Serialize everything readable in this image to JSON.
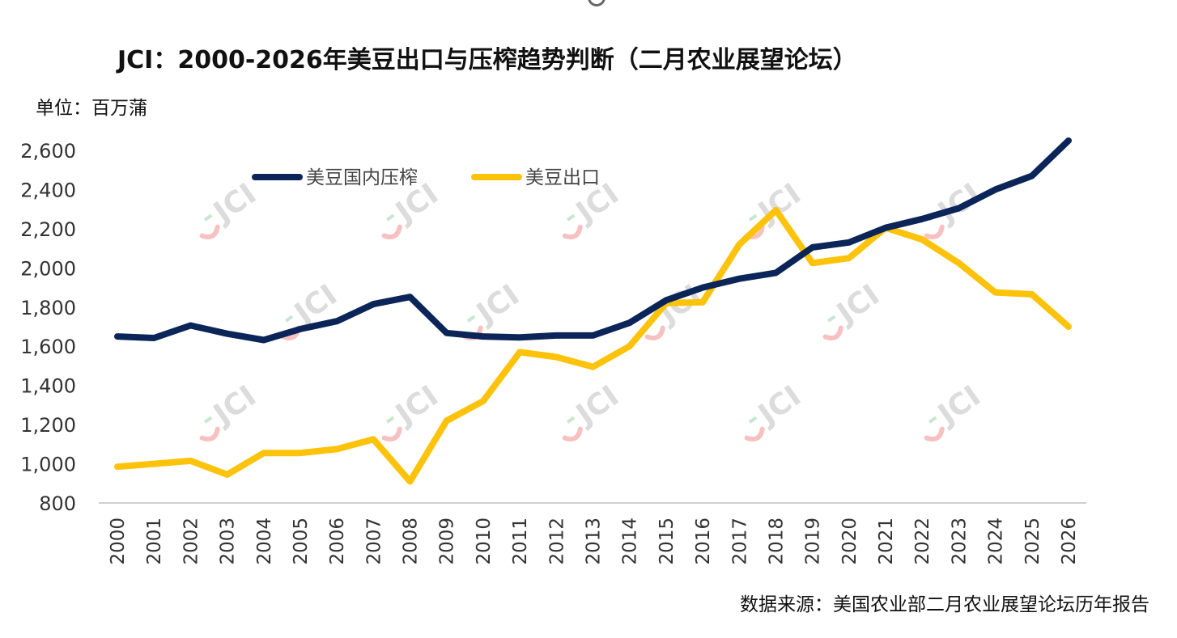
{
  "chart_data": {
    "type": "line",
    "title": "JCI：2000-2026年美豆出口与压榨趋势判断（二月农业展望论坛）",
    "unit_label": "单位：百万蒲",
    "source": "数据来源：美国农业部二月农业展望论坛历年报告",
    "watermark": "JCI",
    "ylim": [
      800,
      2700
    ],
    "yticks": [
      800,
      1000,
      1200,
      1400,
      1600,
      1800,
      2000,
      2200,
      2400,
      2600
    ],
    "ytick_labels": [
      "800",
      "1,000",
      "1,200",
      "1,400",
      "1,600",
      "1,800",
      "2,000",
      "2,200",
      "2,400",
      "2,600"
    ],
    "categories": [
      "2000",
      "2001",
      "2002",
      "2003",
      "2004",
      "2005",
      "2006",
      "2007",
      "2008",
      "2009",
      "2010",
      "2011",
      "2012",
      "2013",
      "2014",
      "2015",
      "2016",
      "2017",
      "2018",
      "2019",
      "2020",
      "2021",
      "2022",
      "2023",
      "2024",
      "2025",
      "2026"
    ],
    "legend_position": "top-left",
    "series": [
      {
        "name": "美豆国内压榨",
        "color": "#0b2559",
        "values": [
          1650,
          1642,
          1706,
          1664,
          1632,
          1688,
          1728,
          1815,
          1852,
          1668,
          1650,
          1645,
          1655,
          1655,
          1720,
          1835,
          1900,
          1945,
          1975,
          2105,
          2130,
          2205,
          2250,
          2305,
          2400,
          2470,
          2650
        ]
      },
      {
        "name": "美豆出口",
        "color": "#fdc20a",
        "values": [
          985,
          1000,
          1015,
          945,
          1055,
          1055,
          1075,
          1125,
          910,
          1220,
          1320,
          1570,
          1545,
          1495,
          1600,
          1820,
          1825,
          2120,
          2295,
          2025,
          2050,
          2205,
          2145,
          2025,
          1875,
          1865,
          1700
        ]
      }
    ]
  }
}
